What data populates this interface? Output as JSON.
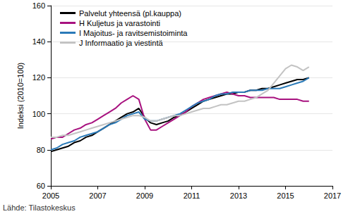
{
  "chart_data": {
    "type": "line",
    "y_label": "Indeksi (2010=100)",
    "annotations": [
      "Lähde: Tilastokeskus"
    ],
    "x": [
      2005,
      2005.25,
      2005.5,
      2005.75,
      2006,
      2006.25,
      2006.5,
      2006.75,
      2007,
      2007.25,
      2007.5,
      2007.75,
      2008,
      2008.25,
      2008.5,
      2008.75,
      2009,
      2009.25,
      2009.5,
      2009.75,
      2010,
      2010.25,
      2010.5,
      2010.75,
      2011,
      2011.25,
      2011.5,
      2011.75,
      2012,
      2012.25,
      2012.5,
      2012.75,
      2013,
      2013.25,
      2013.5,
      2013.75,
      2014,
      2014.25,
      2014.5,
      2014.75,
      2015,
      2015.25,
      2015.5,
      2015.75,
      2016
    ],
    "series": [
      {
        "name": "Palvelut yhteensä (pl.kauppa)",
        "color": "#000000",
        "values": [
          79,
          80,
          81,
          82,
          84,
          85,
          87,
          88,
          90,
          92,
          94,
          96,
          98,
          100,
          101,
          103,
          98,
          95,
          94,
          95,
          96,
          98,
          99,
          101,
          103,
          105,
          107,
          108,
          109,
          110,
          111,
          111,
          112,
          112,
          113,
          113,
          114,
          114,
          115,
          116,
          117,
          118,
          119,
          119,
          120
        ]
      },
      {
        "name": "H Kuljetus ja varastointi",
        "color": "#a8127f",
        "values": [
          86,
          87,
          87,
          89,
          91,
          92,
          94,
          95,
          97,
          99,
          101,
          103,
          106,
          108,
          110,
          108,
          97,
          91,
          91,
          93,
          95,
          97,
          99,
          101,
          104,
          106,
          108,
          109,
          110,
          111,
          112,
          111,
          110,
          110,
          109,
          109,
          109,
          109,
          109,
          108,
          108,
          108,
          108,
          107,
          107
        ]
      },
      {
        "name": "I Majoitus- ja ravitsemistoiminta",
        "color": "#2a7ab8",
        "values": [
          80,
          81,
          83,
          84,
          85,
          87,
          88,
          89,
          90,
          92,
          94,
          95,
          97,
          99,
          100,
          101,
          97,
          96,
          96,
          97,
          98,
          99,
          100,
          102,
          104,
          106,
          107,
          108,
          110,
          111,
          111,
          112,
          112,
          112,
          113,
          113,
          113,
          114,
          114,
          114,
          115,
          116,
          117,
          118,
          120
        ]
      },
      {
        "name": "J Informaatio ja viestintä",
        "color": "#c3c3c3",
        "values": [
          87,
          87,
          88,
          88,
          89,
          90,
          91,
          92,
          93,
          94,
          95,
          96,
          97,
          98,
          99,
          99,
          98,
          96,
          96,
          97,
          98,
          99,
          99,
          100,
          101,
          102,
          103,
          103,
          104,
          105,
          105,
          106,
          107,
          107,
          108,
          109,
          111,
          113,
          117,
          121,
          125,
          127,
          126,
          124,
          126
        ]
      }
    ],
    "xlim": [
      2005,
      2017
    ],
    "xticks": [
      2005,
      2007,
      2009,
      2011,
      2013,
      2015,
      2017
    ],
    "ylim": [
      60,
      160
    ],
    "yticks": [
      60,
      80,
      100,
      120,
      140,
      160
    ],
    "grid": true,
    "legend": "upper left"
  }
}
